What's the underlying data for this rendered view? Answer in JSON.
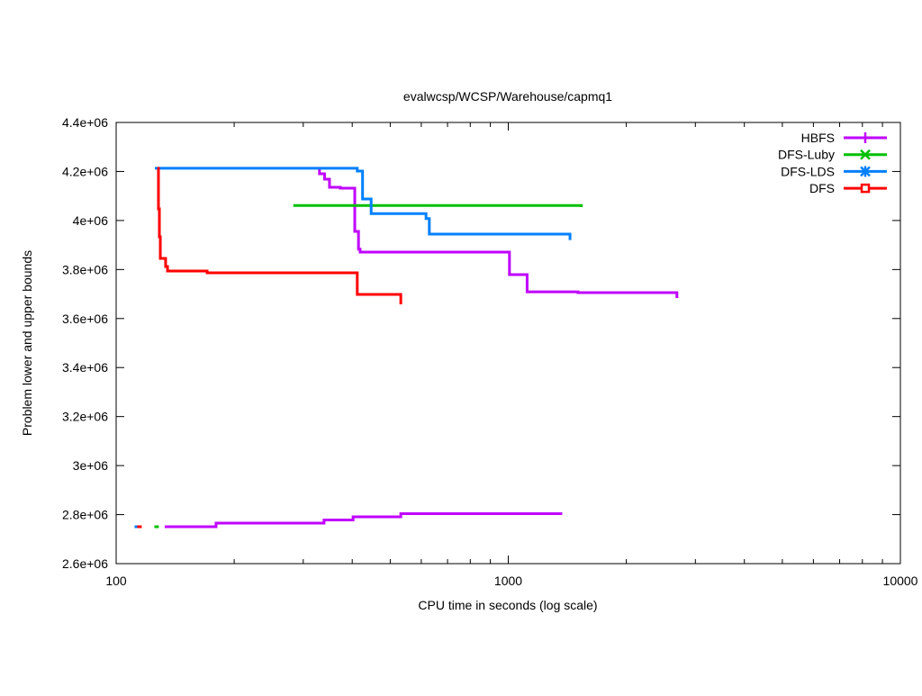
{
  "chart_data": {
    "type": "line",
    "title": "evalwcsp/WCSP/Warehouse/capmq1",
    "xlabel": "CPU time in seconds (log scale)",
    "ylabel": "Problem lower and upper bounds",
    "xscale": "log",
    "xlim": [
      100,
      10000
    ],
    "ylim": [
      2600000,
      4400000
    ],
    "xticks": [
      100,
      1000,
      10000
    ],
    "xtick_labels": [
      "100",
      "1000",
      "10000"
    ],
    "yticks": [
      2600000,
      2800000,
      3000000,
      3200000,
      3400000,
      3600000,
      3800000,
      4000000,
      4200000,
      4400000
    ],
    "ytick_labels": [
      "2.6e+06",
      "2.8e+06",
      "3e+06",
      "3.2e+06",
      "3.4e+06",
      "3.6e+06",
      "3.8e+06",
      "4e+06",
      "4.2e+06",
      "4.4e+06"
    ],
    "grid": false,
    "legend_position": "top-right",
    "draw_style": "steps",
    "series": [
      {
        "name": "HBFS",
        "color": "#c000ff",
        "marker": "plus",
        "segments": [
          [
            [
              330,
              4213000
            ],
            [
              330,
              4190600
            ],
            [
              340,
              4168600
            ],
            [
              350,
              4135500
            ],
            [
              373,
              4131800
            ],
            [
              406,
              3955500
            ],
            [
              415,
              3883100
            ],
            [
              419,
              3871000
            ],
            [
              1007,
              3779000
            ],
            [
              1117,
              3709000
            ],
            [
              1506,
              3705700
            ],
            [
              2692,
              3683700
            ]
          ],
          [
            [
              133,
              2750600
            ],
            [
              179.8,
              2765300
            ],
            [
              339,
              2778000
            ],
            [
              402,
              2791000
            ],
            [
              532,
              2804000
            ],
            [
              1362,
              2809400
            ]
          ]
        ]
      },
      {
        "name": "DFS-Luby",
        "color": "#00c000",
        "marker": "cross",
        "segments": [
          [
            [
              283,
              4061000
            ],
            [
              1536,
              4054700
            ]
          ],
          [
            [
              126.8,
              2750600
            ]
          ]
        ]
      },
      {
        "name": "DFS-LDS",
        "color": "#0080ff",
        "marker": "star",
        "segments": [
          [
            [
              125.5,
              4213000
            ],
            [
              412,
              4201600
            ],
            [
              425,
              4087700
            ],
            [
              447,
              4027900
            ],
            [
              617,
              4008000
            ],
            [
              629,
              3944500
            ],
            [
              1437,
              3920000
            ]
          ],
          [
            [
              112.9,
              2750600
            ]
          ]
        ]
      },
      {
        "name": "DFS",
        "color": "#ff0000",
        "marker": "square",
        "segments": [
          [
            [
              127.5,
              4213000
            ],
            [
              128.2,
              4047300
            ],
            [
              128.9,
              3933500
            ],
            [
              129.6,
              3845300
            ],
            [
              133.7,
              3812200
            ],
            [
              135.2,
              3793900
            ],
            [
              170.6,
              3786500
            ],
            [
              412,
              3698400
            ],
            [
              532,
              3658000
            ]
          ],
          [
            [
              114.7,
              2750600
            ]
          ]
        ]
      }
    ]
  }
}
